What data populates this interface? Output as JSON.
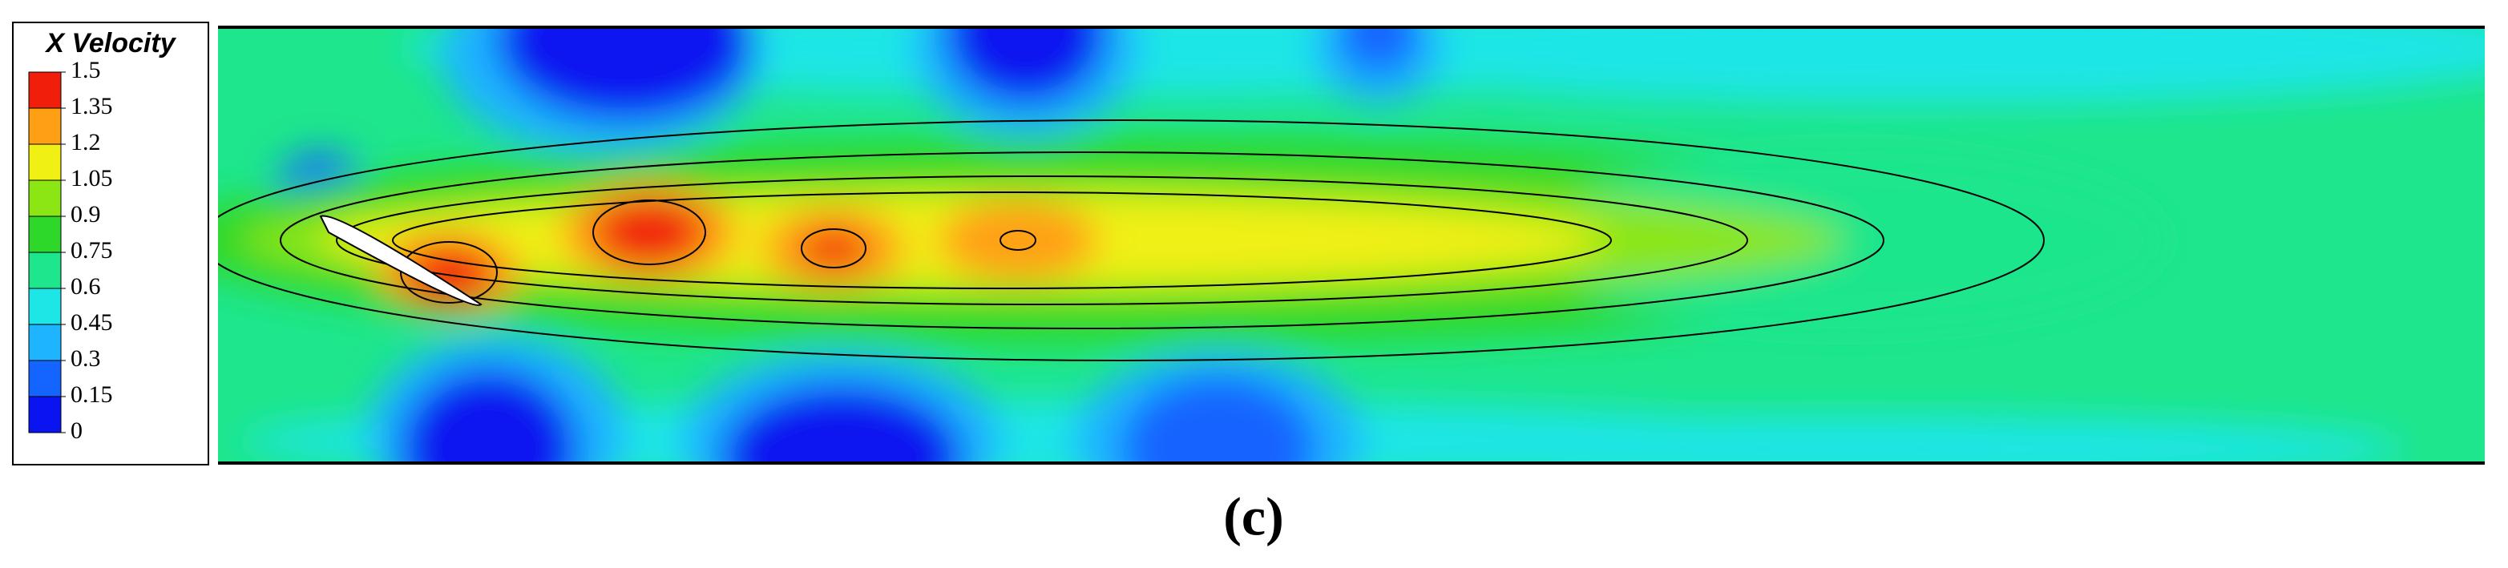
{
  "chart_data": {
    "type": "contour",
    "colorbar": {
      "title": "X Velocity",
      "ticks": [
        0,
        0.15,
        0.3,
        0.45,
        0.6,
        0.75,
        0.9,
        1.05,
        1.2,
        1.35,
        1.5
      ],
      "clim": [
        0,
        1.5
      ],
      "colors": [
        "#0a14f0",
        "#1464ff",
        "#1eb4ff",
        "#1ee6e6",
        "#1ee68c",
        "#2ed82a",
        "#8ce614",
        "#f0f014",
        "#ffa014",
        "#f01e0a"
      ]
    },
    "caption": "(c)"
  }
}
